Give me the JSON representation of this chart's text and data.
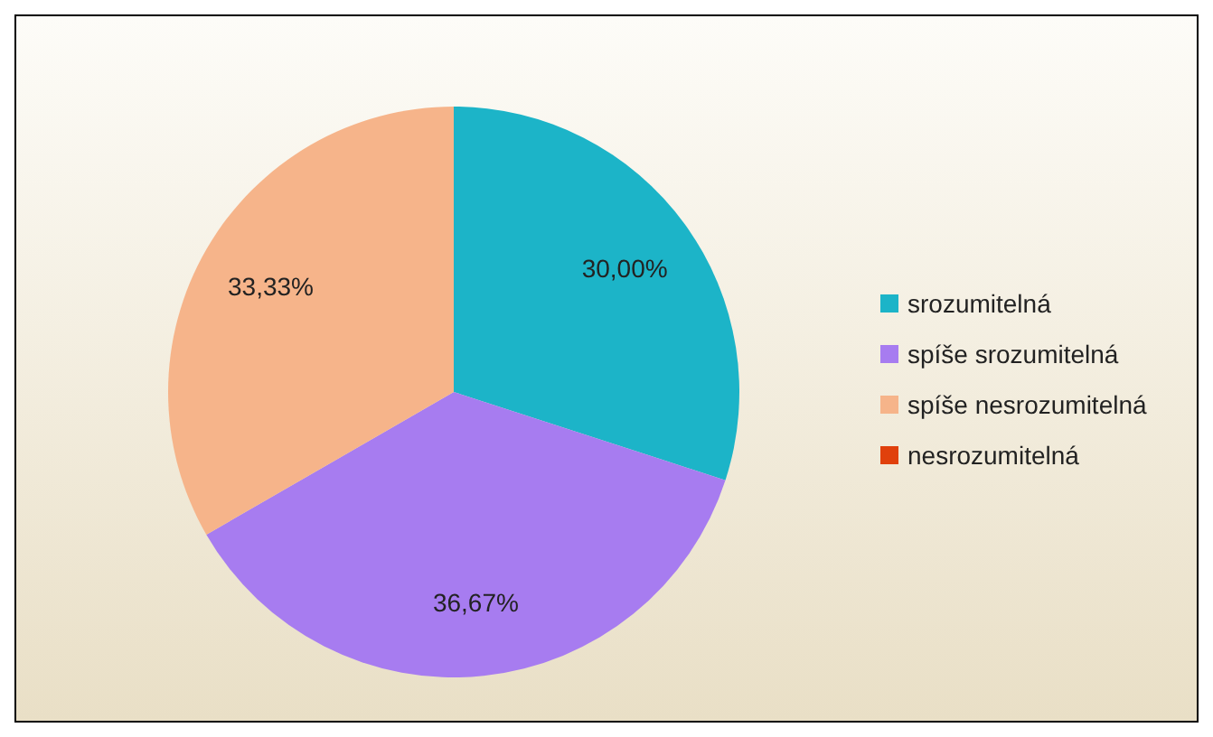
{
  "chart_data": {
    "type": "pie",
    "categories": [
      "srozumitelná",
      "spíše srozumitelná",
      "spíše nesrozumitelná",
      "nesrozumitelná"
    ],
    "values": [
      30.0,
      36.67,
      33.33,
      0
    ],
    "value_labels": [
      "30,00%",
      "36,67%",
      "33,33%",
      null
    ],
    "colors": [
      "#1cb4c8",
      "#a77cf0",
      "#f6b48a",
      "#e0400c"
    ],
    "legend": "right"
  }
}
